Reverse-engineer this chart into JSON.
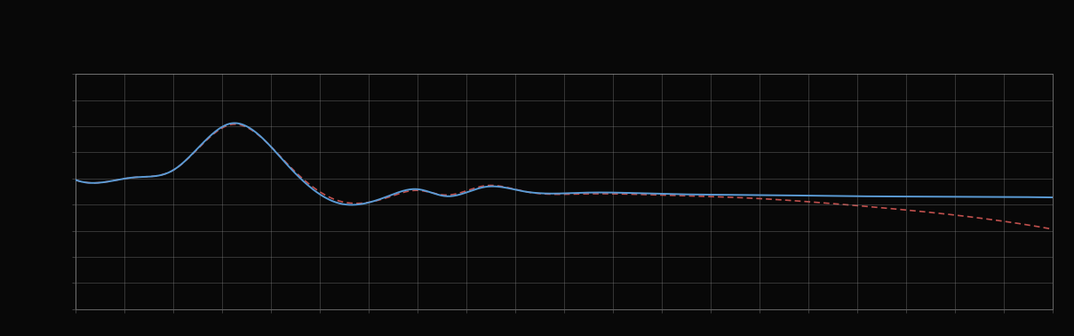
{
  "background_color": "#080808",
  "plot_bg_color": "#080808",
  "grid_color": "#888888",
  "blue_color": "#5b9bd5",
  "red_color": "#c0504d",
  "figsize": [
    12.09,
    3.78
  ],
  "dpi": 100,
  "legend_label_1": "  ",
  "legend_label_2": "  ",
  "xlim": [
    0,
    100
  ],
  "ylim": [
    0,
    10
  ],
  "n_xgrid": 21,
  "n_ygrid": 10,
  "blue_keypoints_x": [
    0,
    3,
    6,
    10,
    16,
    22,
    27,
    32,
    35,
    38,
    42,
    46,
    52,
    60,
    70,
    80,
    90,
    100
  ],
  "blue_keypoints_y": [
    5.5,
    5.4,
    5.6,
    5.9,
    7.9,
    6.0,
    4.5,
    4.8,
    5.1,
    4.8,
    5.2,
    5.0,
    4.95,
    4.9,
    4.85,
    4.8,
    4.78,
    4.75
  ],
  "red_keypoints_x": [
    0,
    3,
    6,
    10,
    16,
    22,
    27,
    32,
    35,
    38,
    42,
    46,
    52,
    60,
    70,
    80,
    90,
    100
  ],
  "red_keypoints_y": [
    5.5,
    5.4,
    5.6,
    5.9,
    7.85,
    6.05,
    4.6,
    4.75,
    5.05,
    4.85,
    5.25,
    5.0,
    4.9,
    4.85,
    4.7,
    4.4,
    4.0,
    3.4
  ]
}
